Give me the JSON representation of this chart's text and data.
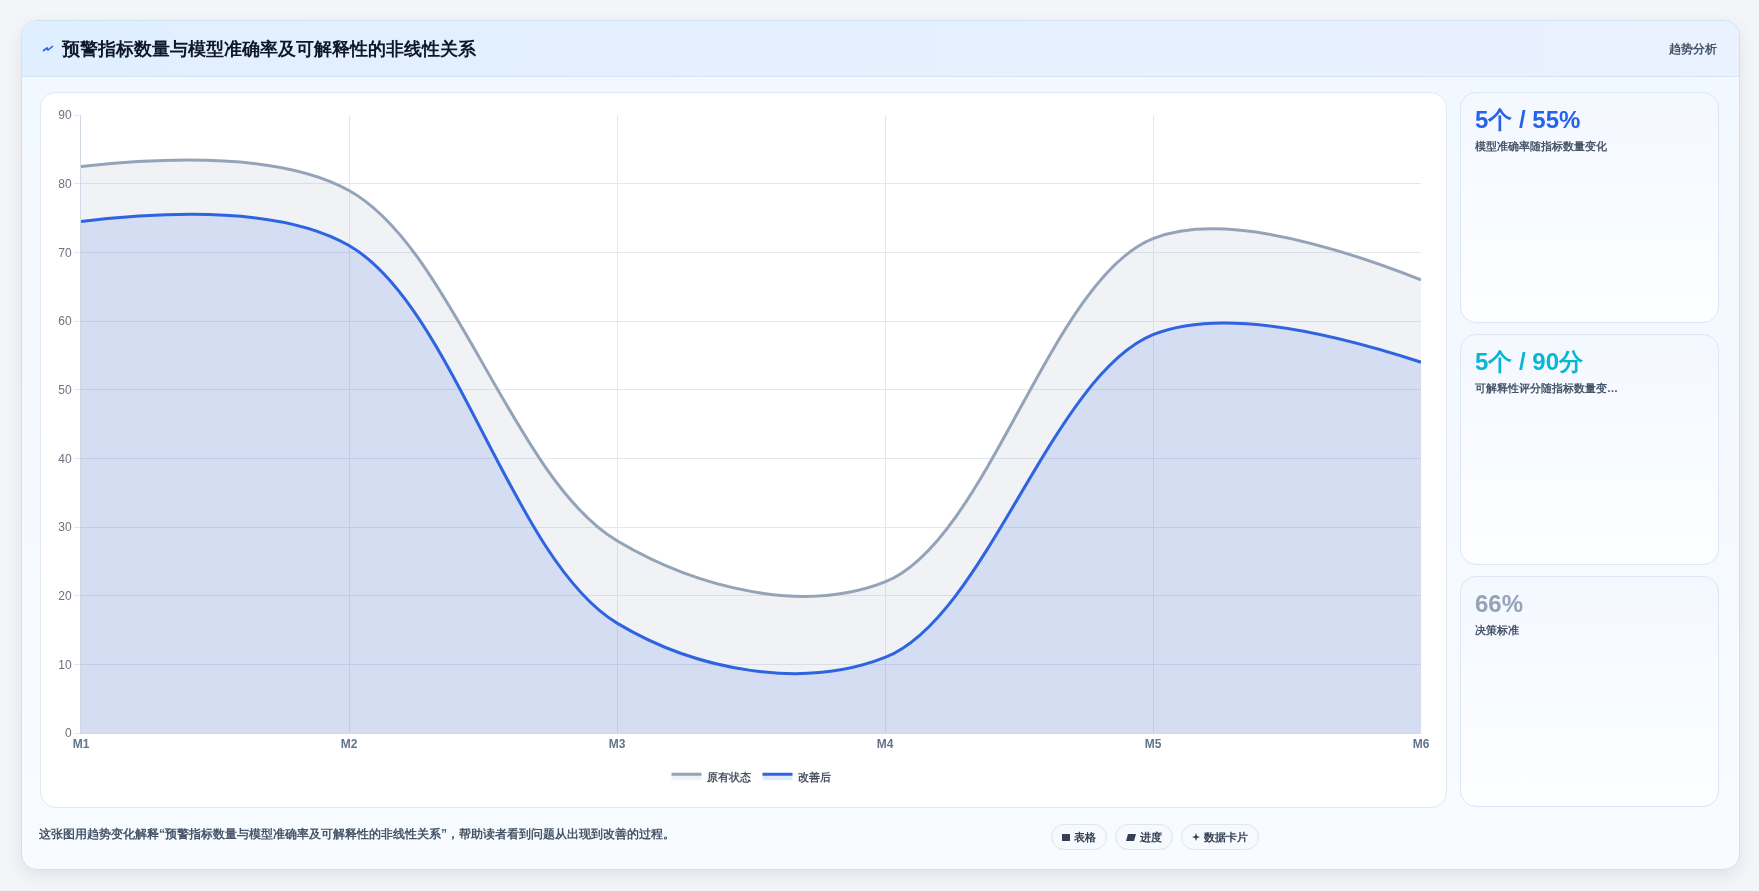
{
  "chart_data": [
    {
      "type": "area",
      "title": "预警指标数量与模型准确率及可解释性的非线性关系",
      "categories": [
        "M1",
        "M2",
        "M3",
        "M4",
        "M5",
        "M6"
      ],
      "series": [
        {
          "name": "原有状态",
          "color": "#94a3b8",
          "values": [
            82.5,
            79,
            28,
            22,
            72,
            66
          ]
        },
        {
          "name": "改善后",
          "color": "#2f64e0",
          "values": [
            74.5,
            71,
            16,
            11,
            58,
            54
          ]
        }
      ],
      "ylim": [
        0,
        90
      ],
      "yticks": [
        0,
        10,
        20,
        30,
        40,
        50,
        60,
        70,
        80,
        90
      ],
      "grid": true,
      "legend": "bottom",
      "annotations": [
        "趋势分析",
        "这张图用趋势变化解释“预警指标数量与模型准确率及可解释性的非线性关系”，帮助读者看到问题从出现到改善的过程。",
        "表格",
        "进度",
        "数据卡片"
      ]
    },
    {
      "type": "other",
      "title": "5个 / 55%",
      "subtitle": "模型准确率随指标数量变化",
      "color": "#2563eb"
    },
    {
      "type": "other",
      "title": "5个 / 90分",
      "subtitle": "可解释性评分随指标数量变…",
      "color": "#06b6d4"
    },
    {
      "type": "other",
      "title": "66%",
      "subtitle": "决策标准",
      "color": "#94a3b8"
    }
  ]
}
